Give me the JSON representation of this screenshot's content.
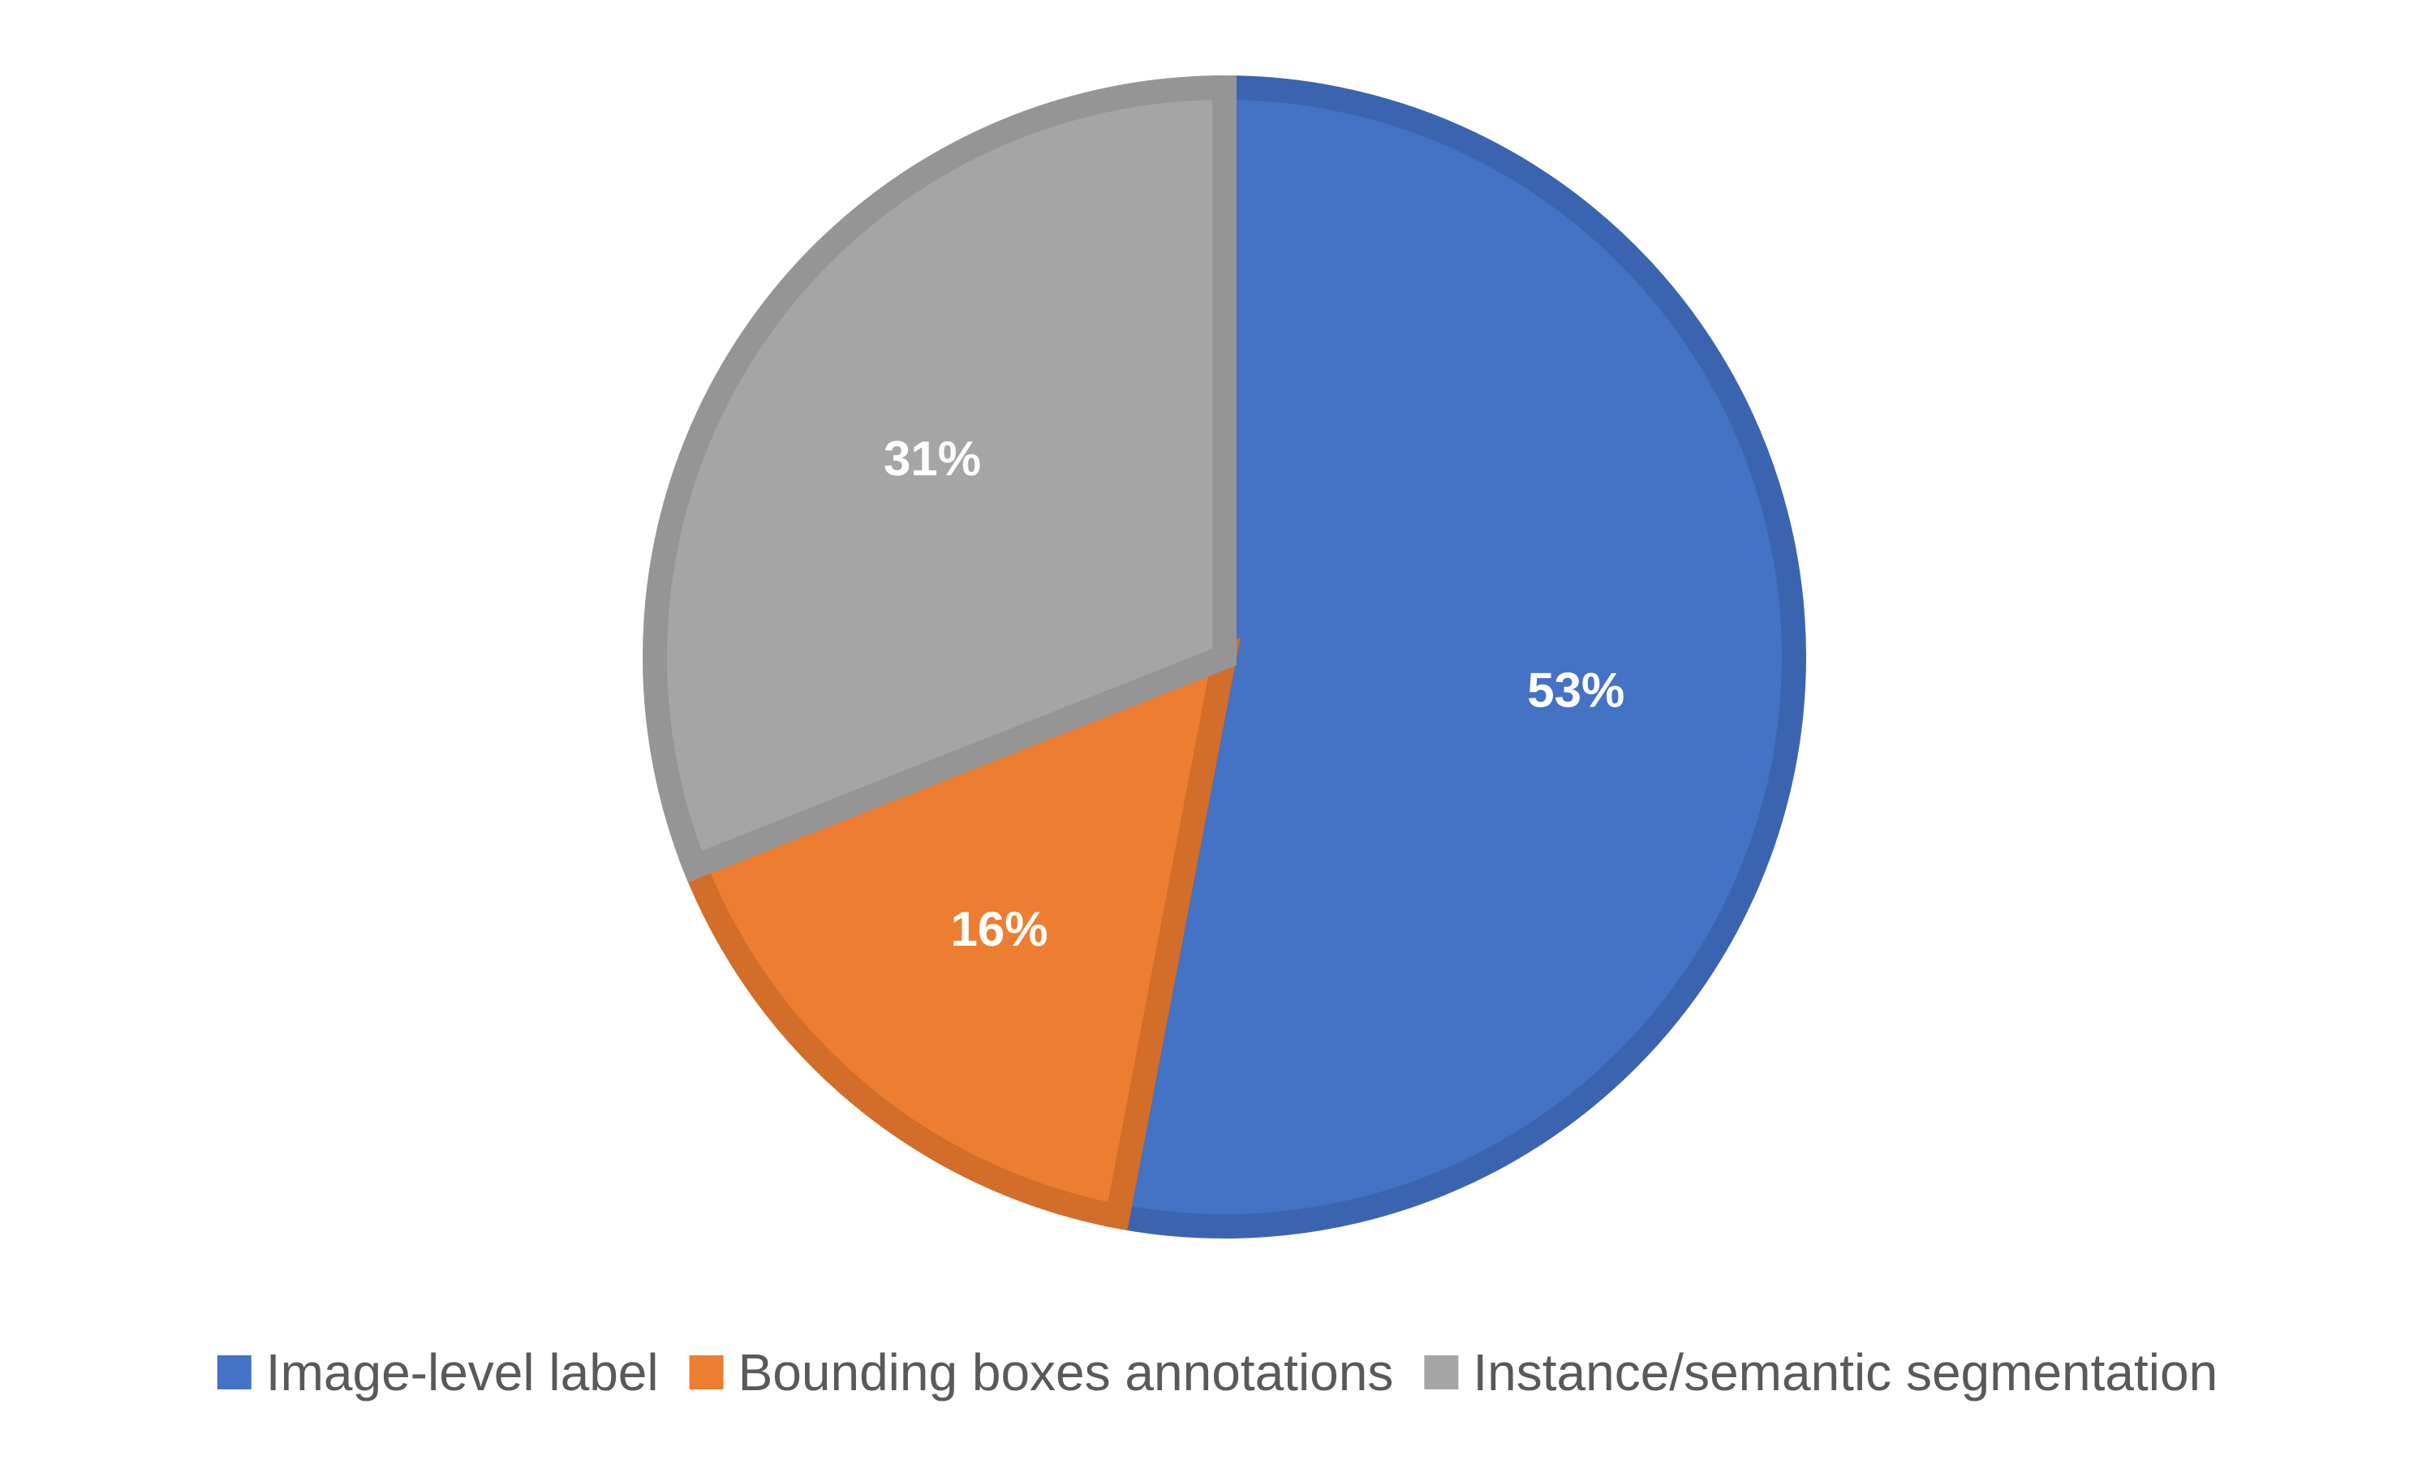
{
  "chart_data": {
    "type": "pie",
    "title": "",
    "slices": [
      {
        "label": "Image-level label",
        "value": 53,
        "data_label": "53%",
        "color": "#4472C4",
        "border_color": "#3B64B0"
      },
      {
        "label": "Bounding boxes annotations",
        "value": 16,
        "data_label": "16%",
        "color": "#ED7D31",
        "border_color": "#D26D2A"
      },
      {
        "label": "Instance/semantic segmentation",
        "value": 31,
        "data_label": "31%",
        "color": "#A5A5A5",
        "border_color": "#959595"
      }
    ],
    "start_angle_deg": 0,
    "direction": "clockwise",
    "legend_position": "bottom",
    "data_label_color": "#FFFFFF",
    "legend_text_color": "#595959"
  }
}
